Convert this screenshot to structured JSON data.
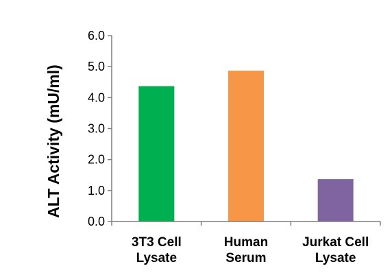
{
  "chart_data": {
    "type": "bar",
    "ylabel": "ALT Activity (mU/ml)",
    "ylim": [
      0,
      6
    ],
    "y_ticks": [
      "0.0",
      "1.0",
      "2.0",
      "3.0",
      "4.0",
      "5.0",
      "6.0"
    ],
    "categories": [
      [
        "3T3 Cell",
        "Lysate"
      ],
      [
        "Human",
        "Serum"
      ],
      [
        "Jurkat Cell",
        "Lysate"
      ]
    ],
    "values": [
      4.37,
      4.87,
      1.37
    ],
    "colors": [
      "#00b050",
      "#f79646",
      "#8064a2"
    ],
    "axis_color": "#7f7f7f",
    "grid": false,
    "legend": "none"
  }
}
